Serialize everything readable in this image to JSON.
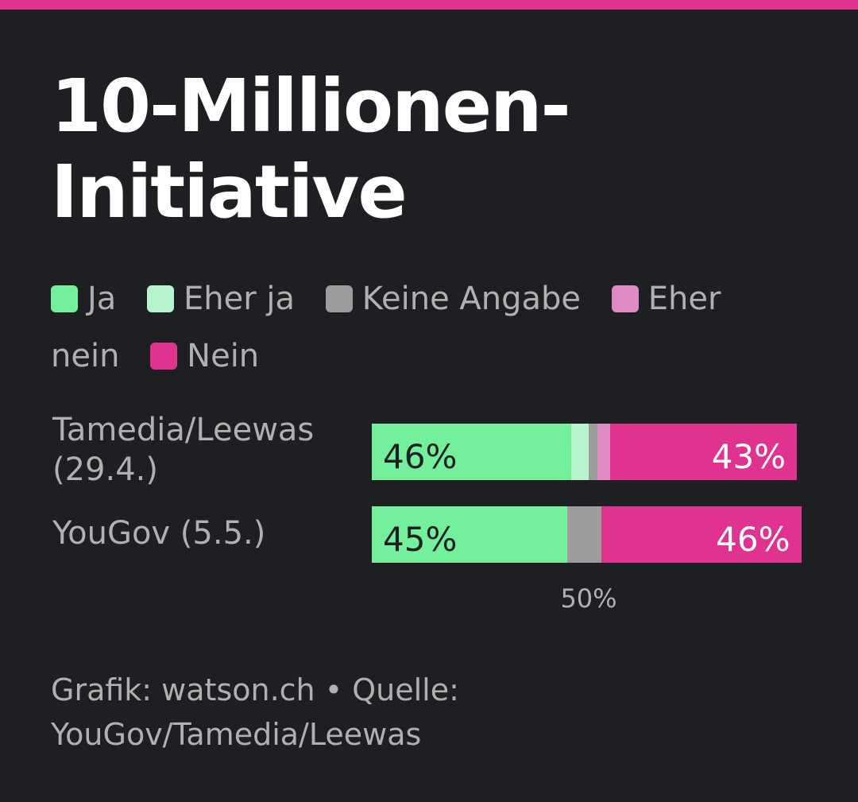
{
  "colors": {
    "ja": "#74ef9c",
    "eher_ja": "#b8f5cf",
    "keine_angabe": "#9c9c9c",
    "eher_nein": "#e08ac3",
    "nein": "#e0338f"
  },
  "chart_data": {
    "type": "bar",
    "orientation": "horizontal",
    "stacked": true,
    "title_lines": [
      "10-Millionen-",
      "Initiative"
    ],
    "legend": [
      {
        "key": "ja",
        "label": "Ja",
        "color": "#74ef9c"
      },
      {
        "key": "eher_ja",
        "label": "Eher ja",
        "color": "#b8f5cf"
      },
      {
        "key": "keine_angabe",
        "label": "Keine Angabe",
        "color": "#9c9c9c"
      },
      {
        "key": "eher_nein",
        "label": "Eher nein",
        "color": "#e08ac3"
      },
      {
        "key": "nein",
        "label": "Nein",
        "color": "#e0338f"
      }
    ],
    "categories": [
      "Tamedia/Leewas (29.4.)",
      "YouGov (5.5.)"
    ],
    "series": [
      {
        "key": "ja",
        "values": [
          46,
          45
        ],
        "labels": [
          "46%",
          "45%"
        ]
      },
      {
        "key": "eher_ja",
        "values": [
          4,
          0
        ]
      },
      {
        "key": "keine_angabe",
        "values": [
          2,
          8
        ]
      },
      {
        "key": "eher_nein",
        "values": [
          3,
          0
        ]
      },
      {
        "key": "nein",
        "values": [
          43,
          46
        ],
        "labels": [
          "43%",
          "46%"
        ]
      }
    ],
    "xlim": [
      0,
      100
    ],
    "reference_tick": {
      "value": 50,
      "label": "50%"
    }
  },
  "source_text": "Grafik: watson.ch • Quelle: YouGov/Tamedia/Leewas"
}
